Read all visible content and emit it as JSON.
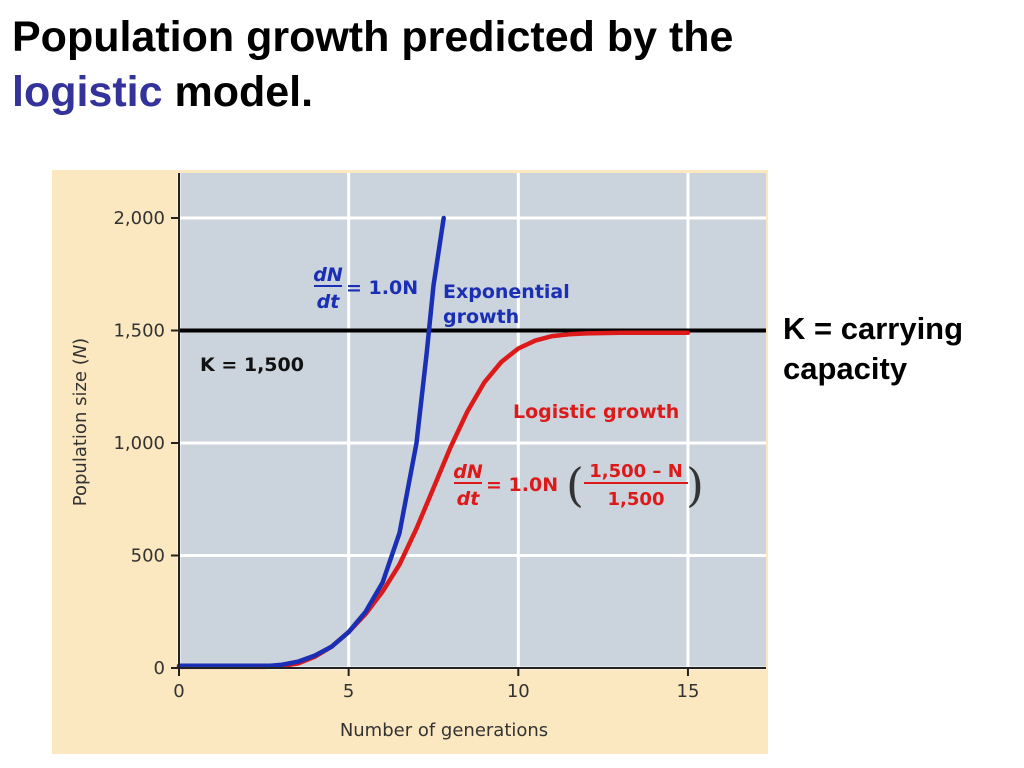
{
  "slide": {
    "title_part1": "Population growth predicted by the",
    "title_accent": "logistic",
    "title_part2": " model.",
    "side_note_line1": "K = carrying",
    "side_note_line2": "capacity"
  },
  "colors": {
    "panel_bg": "#fbe8c0",
    "plot_bg": "#cbd3dc",
    "grid": "#ffffff",
    "exponential": "#1a2fb4",
    "logistic": "#dd1a1a",
    "carrying_line": "#000000",
    "title_accent": "#33339b",
    "axis_text": "#333333"
  },
  "chart_data": {
    "type": "line",
    "xlabel": "Number of generations",
    "ylabel_text": "Population size (",
    "ylabel_var": "N",
    "ylabel_close": ")",
    "xlim": [
      0,
      17.3
    ],
    "ylim": [
      0,
      2200
    ],
    "x_ticks": [
      0,
      5,
      10,
      15
    ],
    "y_ticks": [
      0,
      500,
      1000,
      1500,
      2000
    ],
    "y_tick_labels": [
      "0",
      "500",
      "1,000",
      "1,500",
      "2,000"
    ],
    "grid": true,
    "carrying_capacity": {
      "value": 1500,
      "label": "K = 1,500"
    },
    "series": [
      {
        "name": "Exponential growth",
        "label_line1": "Exponential",
        "label_line2": "growth",
        "equation": {
          "num": "dN",
          "den": "dt",
          "rhs": "= 1.0N"
        },
        "points": [
          [
            0,
            10
          ],
          [
            1,
            10
          ],
          [
            2,
            10
          ],
          [
            2.7,
            10
          ],
          [
            3,
            14
          ],
          [
            3.5,
            28
          ],
          [
            4,
            55
          ],
          [
            4.5,
            95
          ],
          [
            5,
            160
          ],
          [
            5.5,
            250
          ],
          [
            6,
            380
          ],
          [
            6.5,
            600
          ],
          [
            7,
            1000
          ],
          [
            7.3,
            1400
          ],
          [
            7.5,
            1700
          ],
          [
            7.8,
            2000
          ]
        ]
      },
      {
        "name": "Logistic growth",
        "label_line1": "Logistic growth",
        "equation": {
          "num": "dN",
          "den": "dt",
          "rhs": "= 1.0N",
          "frac_num": "1,500 – N",
          "frac_den": "1,500"
        },
        "points": [
          [
            0,
            5
          ],
          [
            2.5,
            5
          ],
          [
            3,
            8
          ],
          [
            3.5,
            20
          ],
          [
            4,
            50
          ],
          [
            4.5,
            95
          ],
          [
            5,
            160
          ],
          [
            5.5,
            240
          ],
          [
            6,
            340
          ],
          [
            6.5,
            460
          ],
          [
            7,
            620
          ],
          [
            7.5,
            800
          ],
          [
            8,
            980
          ],
          [
            8.5,
            1140
          ],
          [
            9,
            1270
          ],
          [
            9.5,
            1360
          ],
          [
            10,
            1420
          ],
          [
            10.5,
            1455
          ],
          [
            11,
            1475
          ],
          [
            11.5,
            1483
          ],
          [
            12,
            1487
          ],
          [
            13,
            1490
          ],
          [
            15,
            1490
          ]
        ]
      }
    ]
  }
}
